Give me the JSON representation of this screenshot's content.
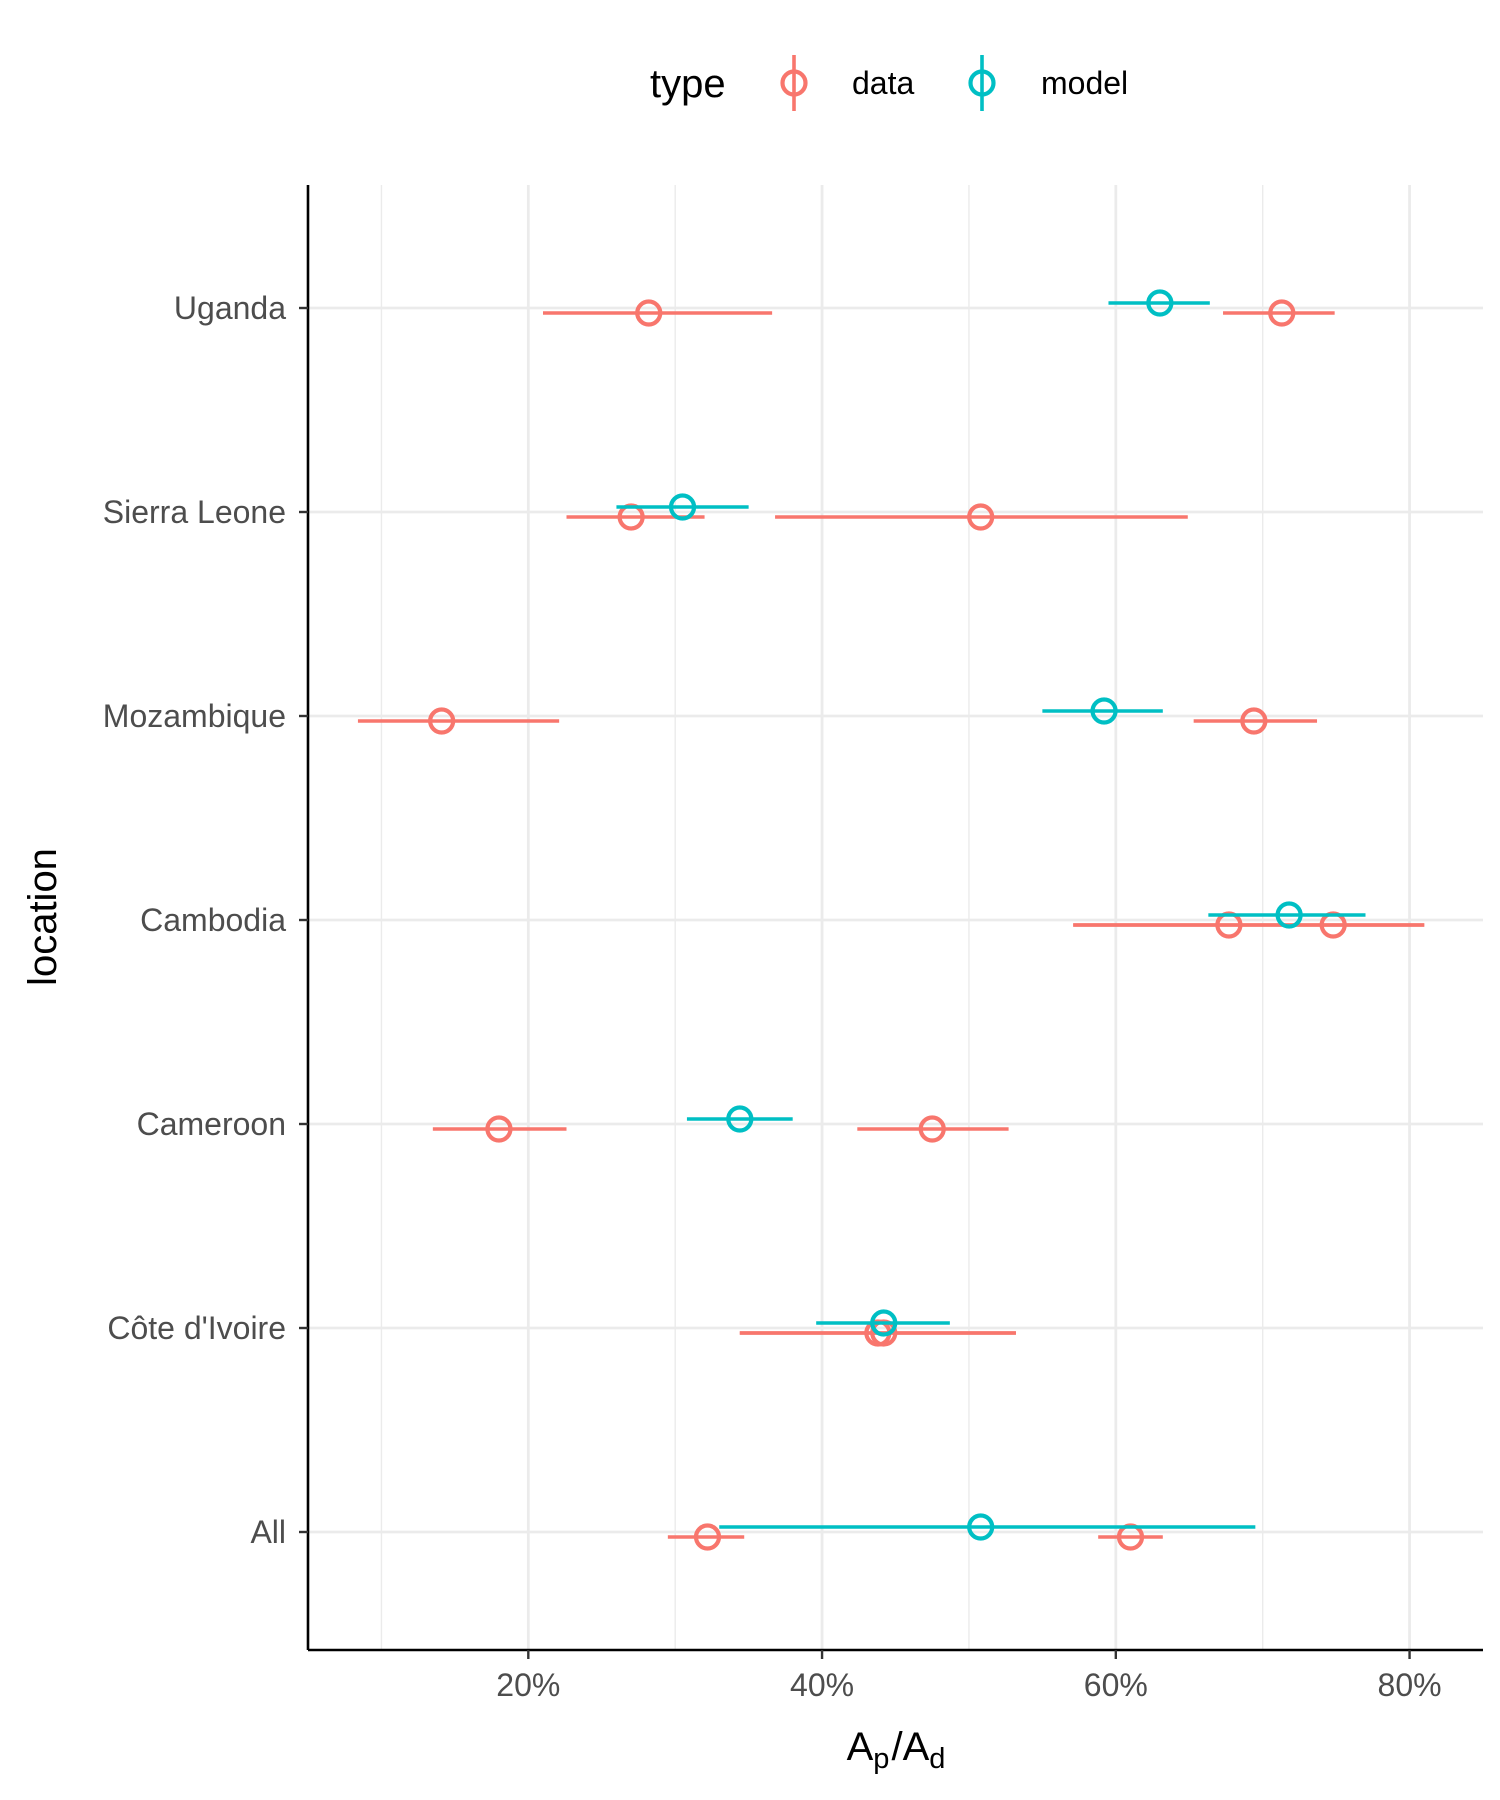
{
  "chart_data": {
    "type": "pointrange",
    "xlabel": {
      "main": "A",
      "sub1": "p",
      "sep": "/",
      "main2": "A",
      "sub2": "d"
    },
    "ylabel": "location",
    "xlim": [
      0.05,
      0.85
    ],
    "x_ticks": [
      0.2,
      0.4,
      0.6,
      0.8
    ],
    "x_tick_labels": [
      "20%",
      "40%",
      "60%",
      "80%"
    ],
    "categories": [
      "Uganda",
      "Sierra Leone",
      "Mozambique",
      "Cambodia",
      "Cameroon",
      "Côte d'Ivoire",
      "All"
    ],
    "legend": {
      "title": "type",
      "position": "top",
      "entries": [
        {
          "label": "data",
          "color": "#F8766D"
        },
        {
          "label": "model",
          "color": "#00BFC4"
        }
      ]
    },
    "series": [
      {
        "name": "data",
        "color": "#F8766D",
        "points": [
          {
            "location": "Uganda",
            "value": 0.282,
            "low": 0.21,
            "high": 0.366
          },
          {
            "location": "Uganda",
            "value": 0.713,
            "low": 0.673,
            "high": 0.749
          },
          {
            "location": "Sierra Leone",
            "value": 0.27,
            "low": 0.226,
            "high": 0.32
          },
          {
            "location": "Sierra Leone",
            "value": 0.508,
            "low": 0.368,
            "high": 0.649
          },
          {
            "location": "Mozambique",
            "value": 0.141,
            "low": 0.084,
            "high": 0.221
          },
          {
            "location": "Mozambique",
            "value": 0.694,
            "low": 0.653,
            "high": 0.737
          },
          {
            "location": "Cambodia",
            "value": 0.677,
            "low": 0.571,
            "high": 0.81
          },
          {
            "location": "Cambodia",
            "value": 0.748,
            "low": 0.571,
            "high": 0.81
          },
          {
            "location": "Cameroon",
            "value": 0.18,
            "low": 0.135,
            "high": 0.226
          },
          {
            "location": "Cameroon",
            "value": 0.475,
            "low": 0.424,
            "high": 0.527
          },
          {
            "location": "Côte d'Ivoire",
            "value": 0.438,
            "low": 0.344,
            "high": 0.532
          },
          {
            "location": "Côte d'Ivoire",
            "value": 0.442,
            "low": 0.344,
            "high": 0.532
          },
          {
            "location": "All",
            "value": 0.322,
            "low": 0.295,
            "high": 0.347
          },
          {
            "location": "All",
            "value": 0.61,
            "low": 0.588,
            "high": 0.632
          }
        ]
      },
      {
        "name": "model",
        "color": "#00BFC4",
        "points": [
          {
            "location": "Uganda",
            "value": 0.63,
            "low": 0.595,
            "high": 0.664
          },
          {
            "location": "Sierra Leone",
            "value": 0.305,
            "low": 0.26,
            "high": 0.35
          },
          {
            "location": "Mozambique",
            "value": 0.592,
            "low": 0.55,
            "high": 0.632
          },
          {
            "location": "Cambodia",
            "value": 0.718,
            "low": 0.663,
            "high": 0.77
          },
          {
            "location": "Cameroon",
            "value": 0.344,
            "low": 0.308,
            "high": 0.38
          },
          {
            "location": "Côte d'Ivoire",
            "value": 0.442,
            "low": 0.396,
            "high": 0.487
          },
          {
            "location": "All",
            "value": 0.508,
            "low": 0.33,
            "high": 0.695
          }
        ]
      }
    ]
  }
}
